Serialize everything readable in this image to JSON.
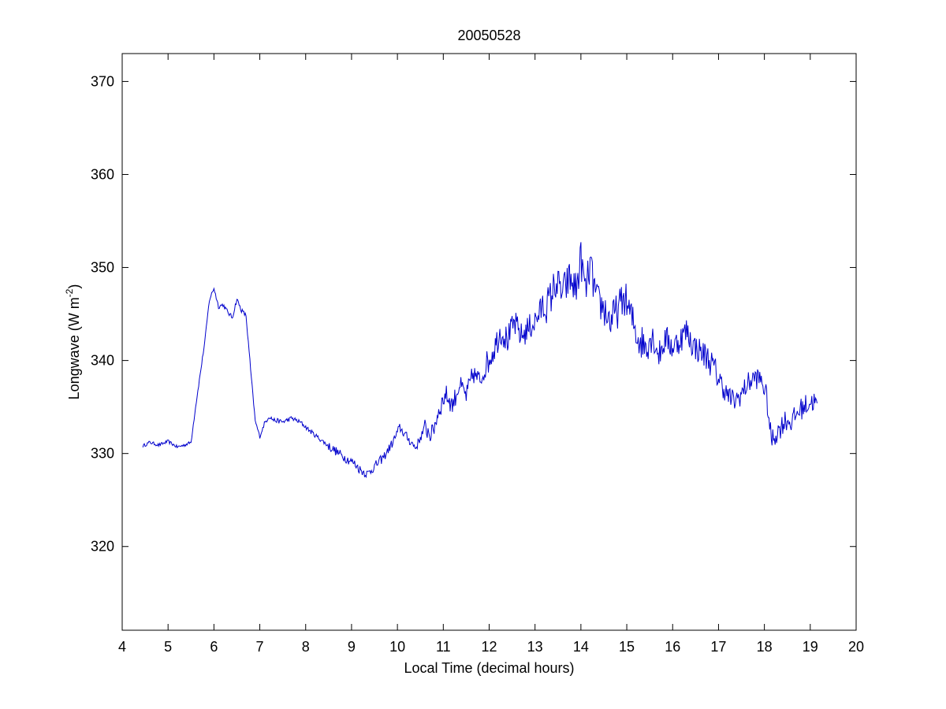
{
  "chart_data": {
    "type": "line",
    "title": "20050528",
    "xlabel": "Local Time (decimal hours)",
    "ylabel_main": "Longwave (W m",
    "ylabel_sup": "-2",
    "ylabel_close": ")",
    "xlim": [
      4,
      20
    ],
    "ylim": [
      311,
      373
    ],
    "xticks": [
      4,
      5,
      6,
      7,
      8,
      9,
      10,
      11,
      12,
      13,
      14,
      15,
      16,
      17,
      18,
      19,
      20
    ],
    "yticks": [
      320,
      330,
      340,
      350,
      360,
      370
    ],
    "grid": false,
    "line_color": "#0000cc",
    "series": [
      {
        "x": [
          4.45,
          4.6,
          4.8,
          5.0,
          5.2,
          5.35,
          5.5,
          5.6,
          5.7,
          5.8,
          5.9,
          6.0,
          6.1,
          6.2,
          6.3,
          6.4,
          6.5,
          6.6,
          6.7,
          6.8,
          6.9,
          7.0,
          7.1,
          7.2,
          7.3,
          7.5,
          7.7,
          7.9,
          8.1,
          8.3,
          8.5,
          8.7,
          8.9,
          9.05,
          9.2,
          9.35,
          9.5,
          9.7,
          9.9,
          10.05,
          10.2,
          10.4,
          10.6,
          10.75,
          10.9,
          11.05,
          11.2,
          11.35,
          11.5,
          11.65,
          11.8,
          11.95,
          12.1,
          12.25,
          12.4,
          12.55,
          12.7,
          12.85,
          13.0,
          13.15,
          13.3,
          13.45,
          13.6,
          13.75,
          13.9,
          14.0,
          14.1,
          14.2,
          14.35,
          14.5,
          14.65,
          14.8,
          14.95,
          15.1,
          15.25,
          15.4,
          15.55,
          15.7,
          15.85,
          16.0,
          16.15,
          16.3,
          16.45,
          16.6,
          16.75,
          16.9,
          17.05,
          17.2,
          17.35,
          17.5,
          17.65,
          17.8,
          17.95,
          18.05,
          18.15,
          18.3,
          18.45,
          18.6,
          18.75,
          18.9,
          19.05,
          19.15
        ],
        "y": [
          330.8,
          331.2,
          330.9,
          331.3,
          330.7,
          330.9,
          331.2,
          335.0,
          338.5,
          342.0,
          346.5,
          347.8,
          345.8,
          346.0,
          345.2,
          344.6,
          346.6,
          345.4,
          344.8,
          339.0,
          333.5,
          331.8,
          333.2,
          334.0,
          333.6,
          333.4,
          333.8,
          333.3,
          332.4,
          331.6,
          330.8,
          330.1,
          329.4,
          329.0,
          328.2,
          327.8,
          328.6,
          329.6,
          331.2,
          332.8,
          331.8,
          330.6,
          332.8,
          332.0,
          334.6,
          336.4,
          335.2,
          337.4,
          336.2,
          338.6,
          337.8,
          339.6,
          341.2,
          343.2,
          342.2,
          344.0,
          342.6,
          343.4,
          344.2,
          345.6,
          346.2,
          348.4,
          347.2,
          348.8,
          347.6,
          351.0,
          347.4,
          350.2,
          346.4,
          345.6,
          344.2,
          345.4,
          346.8,
          344.6,
          342.4,
          341.6,
          342.8,
          340.6,
          342.4,
          341.4,
          342.2,
          343.2,
          341.6,
          341.0,
          340.4,
          339.2,
          337.6,
          336.2,
          335.6,
          336.4,
          337.6,
          338.2,
          337.8,
          336.0,
          331.4,
          332.4,
          333.6,
          333.4,
          334.6,
          335.2,
          335.6,
          335.4
        ]
      }
    ]
  }
}
